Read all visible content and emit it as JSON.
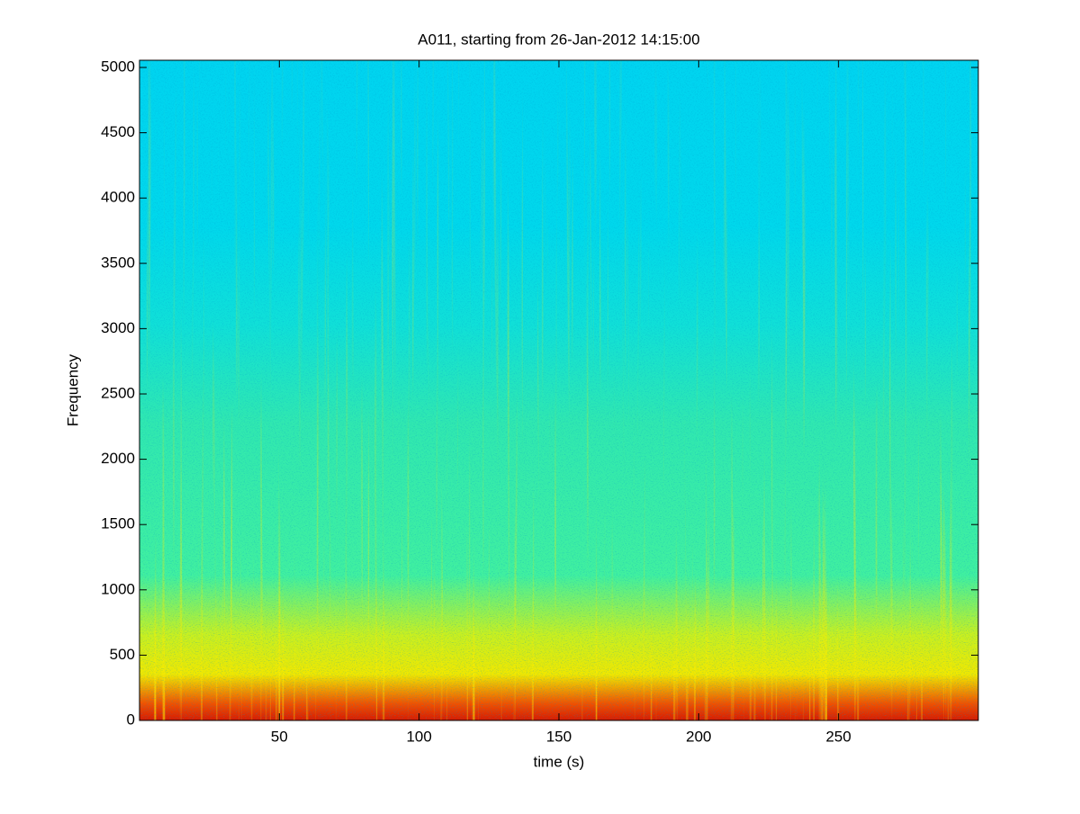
{
  "chart_data": {
    "type": "spectrogram",
    "title": "A011, starting from 26-Jan-2012 14:15:00",
    "x_label": "time (s)",
    "y_label": "Frequency",
    "xlim": [
      0,
      300
    ],
    "xticks": [
      50,
      100,
      150,
      200,
      250
    ],
    "ylim": [
      0,
      5055
    ],
    "yticks": [
      0,
      500,
      1000,
      1500,
      2000,
      2500,
      3000,
      3500,
      4000,
      4500,
      5000
    ]
  }
}
